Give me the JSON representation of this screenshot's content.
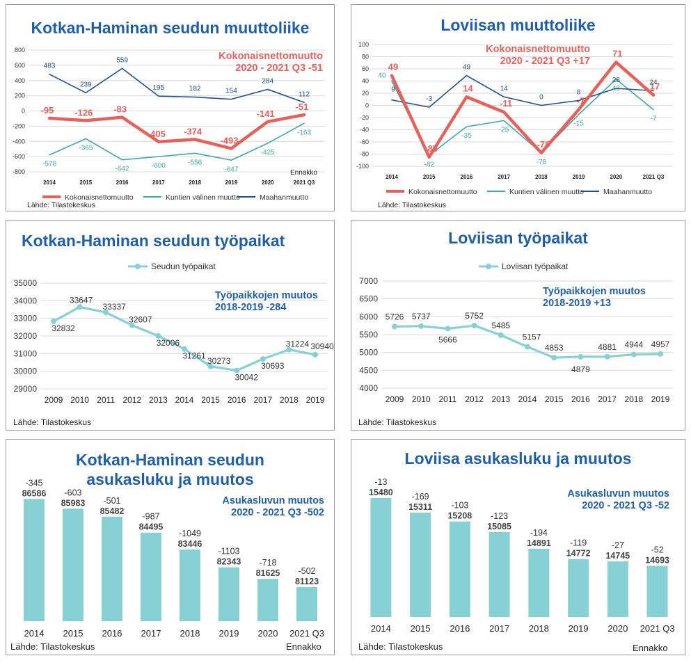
{
  "colors": {
    "title": "#1f5fa8",
    "total": "#e8605a",
    "municipal": "#3aa9a6",
    "immigration": "#1f4f8f",
    "bar": "#87d1d5",
    "line": "#87d1d5"
  },
  "panels": {
    "p1": {
      "title": "Kotkan-Haminan seudun muuttoliike",
      "note1": "Kokonaisnettomuutto",
      "note2": "2020 - 2021 Q3   -51",
      "extra": "Ennakko",
      "source": "Lähde: Tilastokeskus"
    },
    "p2": {
      "title": "Loviisan muuttoliike",
      "note1": "Kokonaisnettomuutto",
      "note2": "2020 - 2021 Q3   +17",
      "source": "Lähde: Tilastokeskus"
    },
    "p3": {
      "title": "Kotkan-Haminan seudun työpaikat",
      "note1": "Työpaikkojen muutos",
      "note2": "2018-2019   -284",
      "source": "Lähde: Tilastokeskus"
    },
    "p4": {
      "title": "Loviisan työpaikat",
      "note1": "Työpaikkojen muutos",
      "note2": "2018-2019   +13",
      "source": "Lähde: Tilastokeskus"
    },
    "p5": {
      "title1": "Kotkan-Haminan seudun",
      "title2": "asukasluku ja muutos",
      "note1": "Asukasluvun muutos",
      "note2": "2020 - 2021 Q3    -502",
      "source": "Lähde: Tilastokeskus",
      "extra": "Ennakko"
    },
    "p6": {
      "title": "Loviisa asukasluku ja muutos",
      "note1": "Asukasluvun muutos",
      "note2": "2020 - 2021 Q3    -52",
      "source": "Lähde: Tilastokeskus",
      "extra": "Ennakko"
    }
  },
  "chart_data": [
    {
      "type": "line",
      "categories": [
        "2014",
        "2015",
        "2016",
        "2017",
        "2018",
        "2019",
        "2020",
        "2021 Q3"
      ],
      "ylim": [
        -800,
        800
      ],
      "yticks": [
        800,
        600,
        400,
        200,
        0,
        -200,
        -400,
        -600,
        -800
      ],
      "series": [
        {
          "name": "Kokonaisnettomuutto",
          "values": [
            -95,
            -126,
            -83,
            -405,
            -374,
            -493,
            -141,
            -51
          ]
        },
        {
          "name": "Kuntien välinen muutto",
          "values": [
            -578,
            -365,
            -642,
            -600,
            -556,
            -647,
            -425,
            -163
          ]
        },
        {
          "name": "Maahanmuutto",
          "values": [
            483,
            239,
            559,
            195,
            182,
            154,
            284,
            112
          ]
        }
      ],
      "legend": "bottom"
    },
    {
      "type": "line",
      "categories": [
        "2014",
        "2015",
        "2016",
        "2017",
        "2018",
        "2019",
        "2020",
        "2021 Q3"
      ],
      "ylim": [
        -100,
        100
      ],
      "yticks": [
        100,
        80,
        60,
        40,
        20,
        0,
        -20,
        -40,
        -60,
        -80,
        -100
      ],
      "series": [
        {
          "name": "Kokonaisnettomuutto",
          "values": [
            49,
            -85,
            14,
            -11,
            -78,
            -7,
            71,
            17
          ]
        },
        {
          "name": "Kuntien välinen muutto",
          "values": [
            40,
            -82,
            -35,
            -25,
            -78,
            -15,
            43,
            -7
          ]
        },
        {
          "name": "Maahanmuutto",
          "values": [
            9,
            -3,
            49,
            14,
            0,
            8,
            28,
            24
          ]
        }
      ],
      "legend": "bottom"
    },
    {
      "type": "line",
      "categories": [
        "2009",
        "2010",
        "2011",
        "2012",
        "2013",
        "2014",
        "2015",
        "2016",
        "2017",
        "2018",
        "2019"
      ],
      "ylim": [
        29000,
        35000
      ],
      "yticks": [
        35000,
        34000,
        33000,
        32000,
        31000,
        30000,
        29000
      ],
      "series": [
        {
          "name": "Seudun työpaikat",
          "values": [
            32832,
            33647,
            33337,
            32607,
            32006,
            31261,
            30273,
            30042,
            30693,
            31224,
            30940
          ]
        }
      ],
      "legend": "top"
    },
    {
      "type": "line",
      "categories": [
        "2009",
        "2010",
        "2011",
        "2012",
        "2013",
        "2014",
        "2015",
        "2016",
        "2017",
        "2018",
        "2019"
      ],
      "ylim": [
        4000,
        7000
      ],
      "yticks": [
        7000,
        6500,
        6000,
        5500,
        5000,
        4500,
        4000
      ],
      "series": [
        {
          "name": "Loviisan työpaikat",
          "values": [
            5726,
            5737,
            5666,
            5752,
            5485,
            5157,
            4853,
            4879,
            4881,
            4944,
            4957
          ]
        }
      ],
      "legend": "top"
    },
    {
      "type": "bar",
      "categories": [
        "2014",
        "2015",
        "2016",
        "2017",
        "2018",
        "2019",
        "2020",
        "2021 Q3"
      ],
      "values": [
        86586,
        85983,
        85482,
        84495,
        83446,
        82343,
        81625,
        81123
      ],
      "changes": [
        "-345",
        "-603",
        "-501",
        "-987",
        "-1049",
        "-1103",
        "-718",
        "-502"
      ]
    },
    {
      "type": "bar",
      "categories": [
        "2014",
        "2015",
        "2016",
        "2017",
        "2018",
        "2019",
        "2020",
        "2021 Q3"
      ],
      "values": [
        15480,
        15311,
        15208,
        15085,
        14891,
        14772,
        14745,
        14693
      ],
      "changes": [
        "-13",
        "-169",
        "-103",
        "-123",
        "-194",
        "-119",
        "-27",
        "-52"
      ]
    }
  ]
}
